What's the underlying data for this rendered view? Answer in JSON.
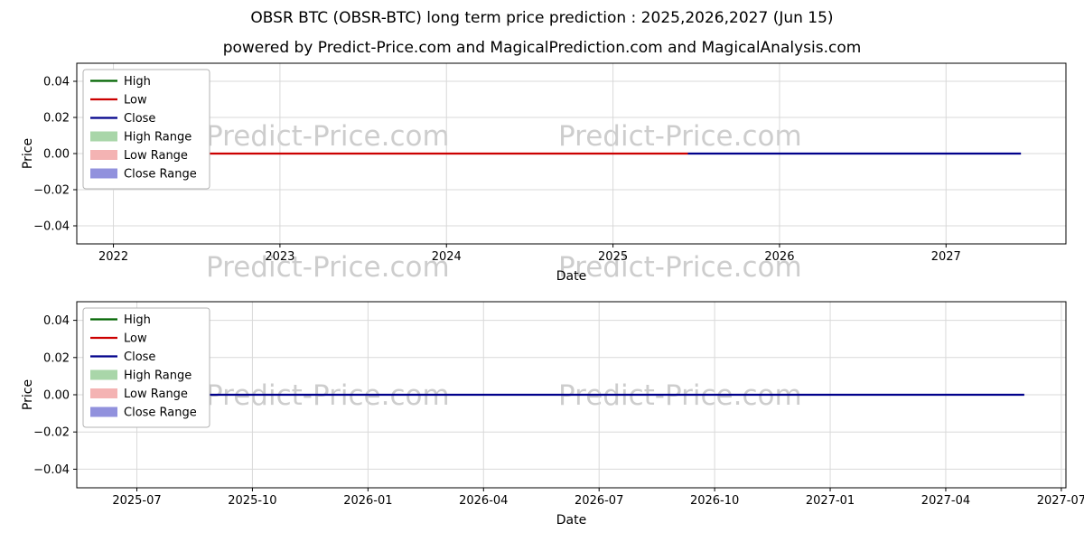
{
  "header": {
    "title": "OBSR BTC (OBSR-BTC) long term price prediction : 2025,2026,2027 (Jun 15)",
    "subtitle": "powered by Predict-Price.com and MagicalPrediction.com and MagicalAnalysis.com"
  },
  "watermark": {
    "text": "Predict-Price.com"
  },
  "legend": {
    "items": [
      {
        "label": "High",
        "type": "line",
        "color": "#006400"
      },
      {
        "label": "Low",
        "type": "line",
        "color": "#cc0000"
      },
      {
        "label": "Close",
        "type": "line",
        "color": "#00008b"
      },
      {
        "label": "High Range",
        "type": "patch",
        "color": "#a9d6a9"
      },
      {
        "label": "Low Range",
        "type": "patch",
        "color": "#f4b3b3"
      },
      {
        "label": "Close Range",
        "type": "patch",
        "color": "#9191dd"
      }
    ]
  },
  "chart_data": [
    {
      "type": "line",
      "title": "",
      "xlabel": "Date",
      "ylabel": "Price",
      "grid": true,
      "legend": true,
      "legend_position": "upper left",
      "xlim": [
        2021.78,
        2027.72
      ],
      "ylim": [
        -0.05,
        0.05
      ],
      "xticks": [
        {
          "value": 2022,
          "label": "2022"
        },
        {
          "value": 2023,
          "label": "2023"
        },
        {
          "value": 2024,
          "label": "2024"
        },
        {
          "value": 2025,
          "label": "2025"
        },
        {
          "value": 2026,
          "label": "2026"
        },
        {
          "value": 2027,
          "label": "2027"
        }
      ],
      "yticks": [
        {
          "value": 0.04,
          "label": "0.04"
        },
        {
          "value": 0.02,
          "label": "0.02"
        },
        {
          "value": 0.0,
          "label": "0.00"
        },
        {
          "value": -0.02,
          "label": "−0.02"
        },
        {
          "value": -0.04,
          "label": "−0.04"
        }
      ],
      "series": [
        {
          "name": "Low",
          "color": "#cc0000",
          "x": [
            2022.0,
            2025.45
          ],
          "y": [
            0.0,
            0.0
          ]
        },
        {
          "name": "Close",
          "color": "#00008b",
          "x": [
            2025.45,
            2027.45
          ],
          "y": [
            0.0,
            0.0
          ]
        }
      ]
    },
    {
      "type": "line",
      "title": "",
      "xlabel": "Date",
      "ylabel": "Price",
      "grid": true,
      "legend": true,
      "legend_position": "upper left",
      "xlim": [
        2025.37,
        2027.51
      ],
      "ylim": [
        -0.05,
        0.05
      ],
      "xticks": [
        {
          "value": 2025.5,
          "label": "2025-07"
        },
        {
          "value": 2025.75,
          "label": "2025-10"
        },
        {
          "value": 2026.0,
          "label": "2026-01"
        },
        {
          "value": 2026.25,
          "label": "2026-04"
        },
        {
          "value": 2026.5,
          "label": "2026-07"
        },
        {
          "value": 2026.75,
          "label": "2026-10"
        },
        {
          "value": 2027.0,
          "label": "2027-01"
        },
        {
          "value": 2027.25,
          "label": "2027-04"
        },
        {
          "value": 2027.5,
          "label": "2027-07"
        }
      ],
      "yticks": [
        {
          "value": 0.04,
          "label": "0.04"
        },
        {
          "value": 0.02,
          "label": "0.02"
        },
        {
          "value": 0.0,
          "label": "0.00"
        },
        {
          "value": -0.02,
          "label": "−0.02"
        },
        {
          "value": -0.04,
          "label": "−0.04"
        }
      ],
      "series": [
        {
          "name": "Close",
          "color": "#00008b",
          "x": [
            2025.63,
            2027.42
          ],
          "y": [
            0.0,
            0.0
          ]
        }
      ]
    }
  ]
}
